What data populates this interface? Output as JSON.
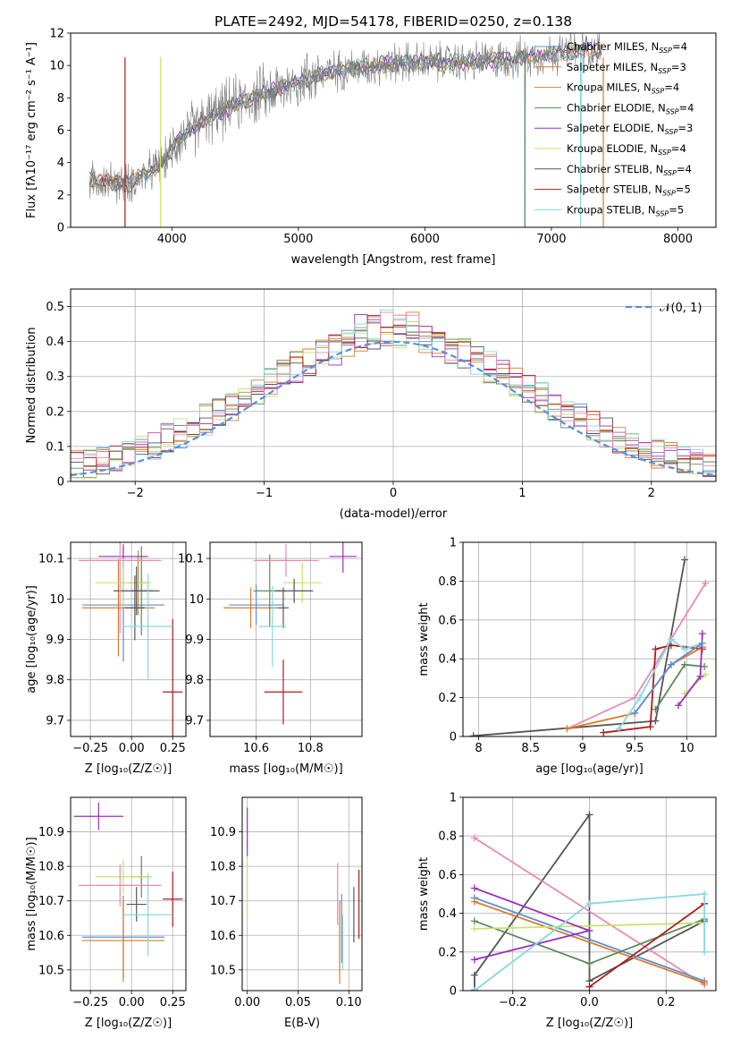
{
  "colors": {
    "Chabrier MILES": "#5b8fd6",
    "Salpeter MILES": "#e07a22",
    "Kroupa MILES": "#c8843a",
    "Chabrier ELODIE": "#5a8a5a",
    "Salpeter ELODIE": "#9b2fbf",
    "Kroupa ELODIE": "#c8e36a",
    "Chabrier STELIB": "#555555",
    "Salpeter STELIB": "#b01a1a",
    "Kroupa STELIB": "#86d8e0",
    "extra": "#e58ab8"
  },
  "legend_labels": {
    "normal": "𝒩(0, 1)"
  },
  "chart_data": [
    {
      "type": "line",
      "id": "spectrum",
      "title": "PLATE=2492, MJD=54178, FIBERID=0250, z=0.138",
      "xlabel": "wavelength [Angstrom, rest frame]",
      "ylabel": "Flux [fλ10⁻¹⁷ erg cm⁻² s⁻¹ A⁻¹]",
      "xlim": [
        3200,
        8300
      ],
      "ylim": [
        0,
        12
      ],
      "xticks": [
        4000,
        5000,
        6000,
        7000,
        8000
      ],
      "yticks": [
        0,
        2,
        4,
        6,
        8,
        10,
        12
      ],
      "legend_position": "top-right",
      "legend": [
        {
          "name": "Chabrier MILES",
          "nssp": "4"
        },
        {
          "name": "Salpeter MILES",
          "nssp": "3"
        },
        {
          "name": "Kroupa MILES",
          "nssp": "4"
        },
        {
          "name": "Chabrier ELODIE",
          "nssp": "4"
        },
        {
          "name": "Salpeter ELODIE",
          "nssp": "3"
        },
        {
          "name": "Kroupa ELODIE",
          "nssp": "4"
        },
        {
          "name": "Chabrier STELIB",
          "nssp": "4"
        },
        {
          "name": "Salpeter STELIB",
          "nssp": "5"
        },
        {
          "name": "Kroupa STELIB",
          "nssp": "5"
        }
      ],
      "continuum": [
        [
          3350,
          2.9
        ],
        [
          3500,
          2.8
        ],
        [
          3650,
          2.7
        ],
        [
          3750,
          3.1
        ],
        [
          3850,
          3.5
        ],
        [
          3950,
          4.2
        ],
        [
          4050,
          5.5
        ],
        [
          4150,
          6.0
        ],
        [
          4250,
          6.6
        ],
        [
          4350,
          7.0
        ],
        [
          4500,
          7.6
        ],
        [
          4700,
          8.2
        ],
        [
          4900,
          8.7
        ],
        [
          5100,
          9.3
        ],
        [
          5300,
          9.7
        ],
        [
          5500,
          9.9
        ],
        [
          5700,
          10.1
        ],
        [
          5900,
          10.2
        ],
        [
          6100,
          10.2
        ],
        [
          6300,
          10.2
        ],
        [
          6500,
          10.3
        ],
        [
          6700,
          10.4
        ],
        [
          6900,
          10.6
        ],
        [
          7100,
          10.8
        ],
        [
          7300,
          11.0
        ],
        [
          7400,
          10.9
        ]
      ],
      "model_cutoffs": [
        {
          "x": 3630,
          "series": "Salpeter STELIB"
        },
        {
          "x": 3910,
          "series": "Kroupa ELODIE"
        },
        {
          "x": 6790,
          "series": "Chabrier ELODIE"
        },
        {
          "x": 7230,
          "series": "Kroupa STELIB"
        },
        {
          "x": 7410,
          "series": "Salpeter MILES"
        }
      ],
      "grid": false
    },
    {
      "type": "area",
      "id": "residuals",
      "xlabel": "(data-model)/error",
      "ylabel": "Normed distribution",
      "xlim": [
        -2.5,
        2.5
      ],
      "ylim": [
        0,
        0.55
      ],
      "xticks": [
        -2,
        -1,
        0,
        1,
        2
      ],
      "yticks": [
        0.0,
        0.1,
        0.2,
        0.3,
        0.4,
        0.5
      ],
      "legend_position": "top-right",
      "grid": true,
      "bin_edges_start": -2.5,
      "bin_width": 0.1,
      "normal_curve": {
        "mean": 0,
        "sigma": 1
      }
    },
    {
      "type": "scatter",
      "id": "age_vs_Z",
      "xlabel": "Z [log₁₀(Z/Z☉)]",
      "ylabel": "age  [log₁₀(age/yr)]",
      "xlim": [
        -0.37,
        0.33
      ],
      "ylim": [
        9.66,
        10.14
      ],
      "xticks": [
        -0.25,
        0.0,
        0.25
      ],
      "xticklabels": [
        "−0.25",
        "0.00",
        "0.25"
      ],
      "yticks": [
        9.7,
        9.8,
        9.9,
        10.0,
        10.1
      ],
      "grid": true,
      "points": [
        {
          "series": "Chabrier MILES",
          "x": -0.05,
          "y": 9.985,
          "xerr": 0.25,
          "yerr": 0.14
        },
        {
          "series": "Salpeter MILES",
          "x": -0.08,
          "y": 9.978,
          "xerr": 0.22,
          "yerr": 0.12
        },
        {
          "series": "Kroupa MILES",
          "x": 0.04,
          "y": 10.04,
          "xerr": 0.06,
          "yerr": 0.08
        },
        {
          "series": "Chabrier ELODIE",
          "x": 0.06,
          "y": 10.02,
          "xerr": 0.06,
          "yerr": 0.11
        },
        {
          "series": "Salpeter ELODIE",
          "x": -0.05,
          "y": 10.105,
          "xerr": 0.15,
          "yerr": 0.03
        },
        {
          "series": "Kroupa ELODIE",
          "x": -0.05,
          "y": 10.04,
          "xerr": 0.17,
          "yerr": 0.06
        },
        {
          "series": "Chabrier STELIB",
          "x": 0.03,
          "y": 10.02,
          "xerr": 0.14,
          "yerr": 0.06
        },
        {
          "series": "Chabrier STELIB",
          "x": 0.02,
          "y": 9.978,
          "xerr": 0.06,
          "yerr": 0.08
        },
        {
          "series": "Salpeter STELIB",
          "x": 0.25,
          "y": 9.77,
          "xerr": 0.06,
          "yerr": 0.18
        },
        {
          "series": "Kroupa STELIB",
          "x": 0.1,
          "y": 9.932,
          "xerr": 0.15,
          "yerr": 0.13
        },
        {
          "series": "extra",
          "x": -0.07,
          "y": 10.095,
          "xerr": 0.25,
          "yerr": 0.18
        }
      ]
    },
    {
      "type": "scatter",
      "id": "age_vs_mass",
      "xlabel": "mass [log₁₀(M/M☉)]",
      "xlim": [
        10.43,
        10.99
      ],
      "ylim": [
        9.66,
        10.14
      ],
      "xticks": [
        10.6,
        10.8
      ],
      "yticks": [
        9.7,
        9.8,
        9.9,
        10.0,
        10.1
      ],
      "grid": true,
      "points": [
        {
          "series": "Chabrier MILES",
          "x": 10.6,
          "y": 9.985,
          "xerr": 0.1,
          "yerr": 0.05
        },
        {
          "series": "Salpeter MILES",
          "x": 10.58,
          "y": 9.978,
          "xerr": 0.1,
          "yerr": 0.05
        },
        {
          "series": "Chabrier ELODIE",
          "x": 10.65,
          "y": 10.02,
          "xerr": 0.06,
          "yerr": 0.09
        },
        {
          "series": "Salpeter ELODIE",
          "x": 10.92,
          "y": 10.105,
          "xerr": 0.05,
          "yerr": 0.04
        },
        {
          "series": "Kroupa ELODIE",
          "x": 10.77,
          "y": 10.04,
          "xerr": 0.07,
          "yerr": 0.05
        },
        {
          "series": "Chabrier STELIB",
          "x": 10.74,
          "y": 10.02,
          "xerr": 0.07,
          "yerr": 0.03
        },
        {
          "series": "Chabrier STELIB",
          "x": 10.7,
          "y": 9.978,
          "xerr": 0.02,
          "yerr": 0.05
        },
        {
          "series": "Salpeter STELIB",
          "x": 10.7,
          "y": 9.77,
          "xerr": 0.07,
          "yerr": 0.08
        },
        {
          "series": "Kroupa STELIB",
          "x": 10.66,
          "y": 9.932,
          "xerr": 0.05,
          "yerr": 0.1
        },
        {
          "series": "extra",
          "x": 10.71,
          "y": 10.095,
          "xerr": 0.12,
          "yerr": 0.04
        }
      ]
    },
    {
      "type": "line",
      "id": "weight_vs_age",
      "xlabel": "age  [log₁₀(age/yr)]",
      "ylabel": "mass weight",
      "xlim": [
        7.85,
        10.28
      ],
      "ylim": [
        0,
        1.0
      ],
      "xticks": [
        8.0,
        8.5,
        9.0,
        9.5,
        10.0
      ],
      "yticks": [
        0.0,
        0.2,
        0.4,
        0.6,
        0.8,
        1.0
      ],
      "grid": true,
      "series": [
        {
          "name": "Chabrier STELIB",
          "x": [
            7.95,
            9.7,
            9.98
          ],
          "y": [
            0.003,
            0.08,
            0.91
          ]
        },
        {
          "name": "extra",
          "x": [
            8.85,
            9.5,
            10.18
          ],
          "y": [
            0.04,
            0.2,
            0.79
          ]
        },
        {
          "name": "Salpeter STELIB",
          "x": [
            9.2,
            9.65,
            9.7,
            9.85,
            10.15
          ],
          "y": [
            0.02,
            0.05,
            0.45,
            0.47,
            0.45
          ]
        },
        {
          "name": "Salpeter MILES",
          "x": [
            8.85,
            9.5,
            9.85,
            10.15
          ],
          "y": [
            0.04,
            0.12,
            0.37,
            0.46
          ]
        },
        {
          "name": "Kroupa STELIB",
          "x": [
            9.35,
            9.55,
            9.85,
            9.98,
            10.15
          ],
          "y": [
            0.04,
            0.2,
            0.5,
            0.45,
            0.48
          ]
        },
        {
          "name": "Chabrier ELODIE",
          "x": [
            9.7,
            9.98,
            10.17
          ],
          "y": [
            0.14,
            0.37,
            0.36
          ]
        },
        {
          "name": "Kroupa ELODIE",
          "x": [
            9.98,
            10.18
          ],
          "y": [
            0.22,
            0.32
          ]
        },
        {
          "name": "Salpeter ELODIE",
          "x": [
            9.92,
            10.13,
            10.15
          ],
          "y": [
            0.16,
            0.31,
            0.53
          ]
        },
        {
          "name": "Chabrier MILES",
          "x": [
            9.5,
            9.85,
            10.15
          ],
          "y": [
            0.12,
            0.37,
            0.48
          ]
        }
      ]
    },
    {
      "type": "scatter",
      "id": "mass_vs_Z",
      "xlabel": "Z [log₁₀(Z/Z☉)]",
      "ylabel": "mass [log₁₀(M/M☉)]",
      "xlim": [
        -0.37,
        0.33
      ],
      "ylim": [
        10.44,
        11.0
      ],
      "xticks": [
        -0.25,
        0.0,
        0.25
      ],
      "xticklabels": [
        "−0.25",
        "0.00",
        "0.25"
      ],
      "yticks": [
        10.5,
        10.6,
        10.7,
        10.8,
        10.9
      ],
      "grid": true,
      "points": [
        {
          "series": "Chabrier MILES",
          "x": -0.05,
          "y": 10.595,
          "xerr": 0.25,
          "yerr": 0.12
        },
        {
          "series": "Salpeter MILES",
          "x": -0.05,
          "y": 10.585,
          "xerr": 0.25,
          "yerr": 0.12
        },
        {
          "series": "Chabrier ELODIE",
          "x": 0.06,
          "y": 10.77,
          "xerr": 0.06,
          "yerr": 0.06
        },
        {
          "series": "Salpeter ELODIE",
          "x": -0.2,
          "y": 10.945,
          "xerr": 0.15,
          "yerr": 0.04
        },
        {
          "series": "Kroupa ELODIE",
          "x": -0.05,
          "y": 10.77,
          "xerr": 0.17,
          "yerr": 0.05
        },
        {
          "series": "Chabrier STELIB",
          "x": 0.03,
          "y": 10.69,
          "xerr": 0.06,
          "yerr": 0.05
        },
        {
          "series": "Salpeter STELIB",
          "x": 0.25,
          "y": 10.705,
          "xerr": 0.06,
          "yerr": 0.08
        },
        {
          "series": "Kroupa STELIB",
          "x": 0.1,
          "y": 10.66,
          "xerr": 0.15,
          "yerr": 0.12
        },
        {
          "series": "extra",
          "x": -0.07,
          "y": 10.745,
          "xerr": 0.25,
          "yerr": 0.06
        }
      ]
    },
    {
      "type": "scatter",
      "id": "mass_vs_ebv",
      "xlabel": "E(B-V)",
      "xlim": [
        -0.005,
        0.113
      ],
      "ylim": [
        10.44,
        11.0
      ],
      "xticks": [
        0.0,
        0.05,
        0.1
      ],
      "xticklabels": [
        "0.00",
        "0.05",
        "0.10"
      ],
      "yticks": [
        10.5,
        10.6,
        10.7,
        10.8,
        10.9
      ],
      "grid": true,
      "points": [
        {
          "series": "Salpeter ELODIE",
          "x": 0.0,
          "y": 10.9,
          "xerr": 0,
          "yerr": 0.07
        },
        {
          "series": "Kroupa ELODIE",
          "x": 0.0,
          "y": 10.73,
          "xerr": 0,
          "yerr": 0.09
        },
        {
          "series": "extra",
          "x": 0.089,
          "y": 10.72,
          "xerr": 0,
          "yerr": 0.09
        },
        {
          "series": "Salpeter MILES",
          "x": 0.091,
          "y": 10.58,
          "xerr": 0,
          "yerr": 0.12
        },
        {
          "series": "Chabrier MILES",
          "x": 0.093,
          "y": 10.62,
          "xerr": 0,
          "yerr": 0.1
        },
        {
          "series": "Kroupa STELIB",
          "x": 0.094,
          "y": 10.58,
          "xerr": 0,
          "yerr": 0.08
        },
        {
          "series": "Chabrier STELIB",
          "x": 0.105,
          "y": 10.66,
          "xerr": 0,
          "yerr": 0.08
        },
        {
          "series": "Salpeter STELIB",
          "x": 0.11,
          "y": 10.69,
          "xerr": 0,
          "yerr": 0.1
        }
      ]
    },
    {
      "type": "line",
      "id": "weight_vs_Z",
      "xlabel": "Z [log₁₀(Z/Z☉)]",
      "ylabel": "mass weight",
      "xlim": [
        -0.33,
        0.33
      ],
      "ylim": [
        0,
        1.0
      ],
      "xticks": [
        -0.2,
        0.0,
        0.2
      ],
      "xticklabels": [
        "−0.2",
        "0.0",
        "0.2"
      ],
      "yticks": [
        0.0,
        0.2,
        0.4,
        0.6,
        0.8,
        1.0
      ],
      "grid": true,
      "series": [
        {
          "name": "Chabrier STELIB",
          "x": [
            -0.3,
            -0.3,
            0.0,
            0.0,
            0.3
          ],
          "y": [
            0.003,
            0.08,
            0.91,
            0.05,
            0.36
          ]
        },
        {
          "name": "extra",
          "x": [
            -0.3,
            0.3,
            0.3
          ],
          "y": [
            0.79,
            0.03,
            0.04
          ]
        },
        {
          "name": "Chabrier MILES",
          "x": [
            -0.3,
            0.3
          ],
          "y": [
            0.48,
            0.05
          ]
        },
        {
          "name": "Salpeter MILES",
          "x": [
            -0.3,
            0.3
          ],
          "y": [
            0.46,
            0.04
          ]
        },
        {
          "name": "Chabrier ELODIE",
          "x": [
            -0.3,
            0.0,
            0.3
          ],
          "y": [
            0.36,
            0.14,
            0.37
          ]
        },
        {
          "name": "Kroupa ELODIE",
          "x": [
            -0.3,
            0.3
          ],
          "y": [
            0.32,
            0.35
          ]
        },
        {
          "name": "Salpeter ELODIE",
          "x": [
            -0.3,
            0.0,
            -0.3
          ],
          "y": [
            0.16,
            0.31,
            0.53
          ]
        },
        {
          "name": "Salpeter STELIB",
          "x": [
            0.0,
            0.3
          ],
          "y": [
            0.02,
            0.45
          ]
        },
        {
          "name": "Kroupa STELIB",
          "x": [
            -0.3,
            0.0,
            0.3,
            0.3
          ],
          "y": [
            0.0,
            0.45,
            0.5,
            0.2
          ]
        }
      ]
    }
  ]
}
